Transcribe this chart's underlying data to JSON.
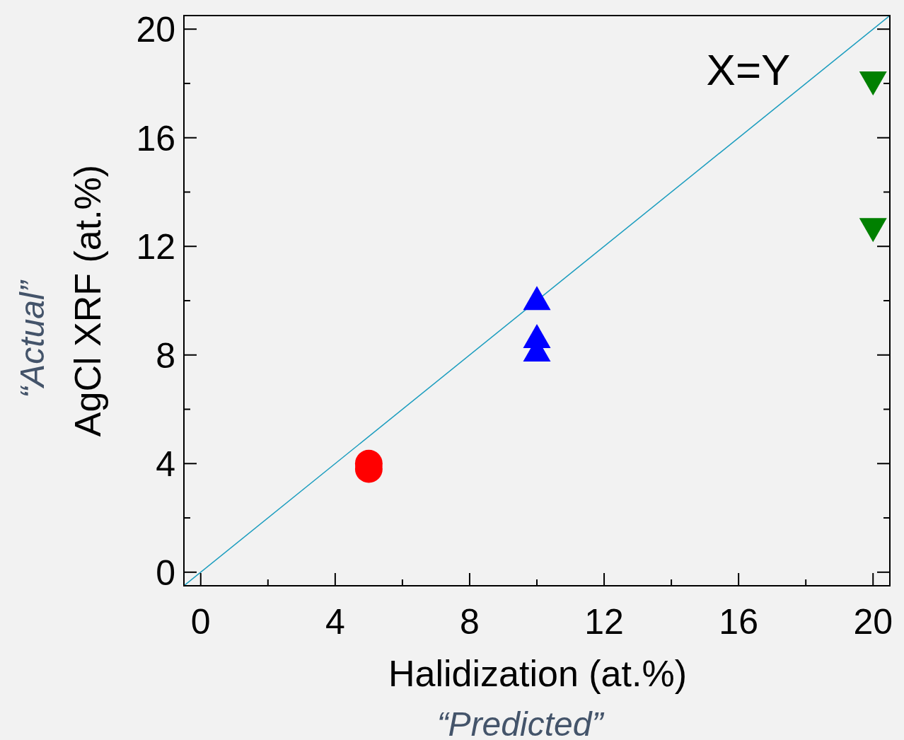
{
  "chart_data": {
    "type": "scatter",
    "xlabel": "Halidization (at.%)",
    "ylabel": "AgCl XRF (at.%)",
    "xlim": [
      -0.5,
      20.5
    ],
    "ylim": [
      -0.5,
      20.5
    ],
    "xticks": [
      0,
      {
        "value": 2,
        "label": null
      },
      4,
      {
        "value": 6,
        "label": null
      },
      8,
      {
        "value": 10,
        "label": null
      },
      12,
      {
        "value": 14,
        "label": null
      },
      16,
      {
        "value": 18,
        "label": null
      },
      20
    ],
    "yticks": [
      0,
      {
        "value": 2,
        "label": null
      },
      4,
      {
        "value": 6,
        "label": null
      },
      8,
      {
        "value": 10,
        "label": null
      },
      12,
      {
        "value": 14,
        "label": null
      },
      16,
      {
        "value": 18,
        "label": null
      },
      20
    ],
    "grid": false,
    "series": [
      {
        "type": "line",
        "color": "#1b9dbf",
        "x": [
          -0.5,
          20.5
        ],
        "values": [
          -0.5,
          20.5
        ],
        "marker": "none",
        "line_style": "solid"
      },
      {
        "color": "#ff0000",
        "x": [
          5,
          5
        ],
        "values": [
          4.0,
          3.8
        ],
        "marker": "circle"
      },
      {
        "color": "#0000ff",
        "x": [
          10,
          10,
          10
        ],
        "values": [
          10.1,
          8.7,
          8.2
        ],
        "marker": "triangle"
      },
      {
        "color": "#008000",
        "x": [
          20,
          20
        ],
        "values": [
          18.0,
          12.6
        ],
        "marker": "triangle-down"
      }
    ],
    "annotations": [
      "X=Y",
      "“Actual”",
      "“Predicted”"
    ]
  }
}
